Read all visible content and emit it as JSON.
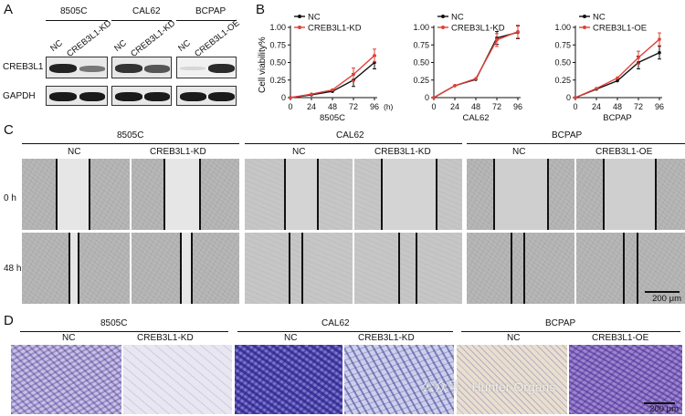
{
  "panels": {
    "a": "A",
    "b": "B",
    "c": "C",
    "d": "D"
  },
  "western": {
    "groups": [
      "8505C",
      "CAL62",
      "BCPAP"
    ],
    "lanes": [
      "NC",
      "CREB3L1-KD",
      "NC",
      "CREB3L1-KD",
      "NC",
      "CREB3L1-OE"
    ],
    "rows": [
      "CREB3L1",
      "GAPDH"
    ]
  },
  "viability": {
    "ylabel": "Cell viability%",
    "x_unit": "(h)",
    "legend_nc": "NC"
  },
  "chart_data": [
    {
      "type": "line",
      "title": "8505C",
      "x": [
        0,
        24,
        48,
        72,
        96
      ],
      "ylim": [
        0,
        1.0
      ],
      "yticks": [
        "0",
        "0.25",
        "0.50",
        "0.75",
        "1.00"
      ],
      "series": [
        {
          "name": "NC",
          "color": "#111111",
          "values": [
            0.0,
            0.04,
            0.09,
            0.25,
            0.5
          ]
        },
        {
          "name": "CREB3L1-KD",
          "color": "#e0413a",
          "values": [
            0.0,
            0.05,
            0.11,
            0.33,
            0.6
          ]
        }
      ]
    },
    {
      "type": "line",
      "title": "CAL62",
      "x": [
        0,
        24,
        48,
        72,
        96
      ],
      "ylim": [
        0,
        1.0
      ],
      "yticks": [
        "0",
        "0.25",
        "0.50",
        "0.75",
        "1.00"
      ],
      "series": [
        {
          "name": "NC",
          "color": "#111111",
          "values": [
            0.0,
            0.17,
            0.26,
            0.85,
            0.93
          ]
        },
        {
          "name": "CREB3L1-KD",
          "color": "#e0413a",
          "values": [
            0.0,
            0.17,
            0.27,
            0.82,
            0.94
          ]
        }
      ]
    },
    {
      "type": "line",
      "title": "BCPAP",
      "x": [
        0,
        24,
        48,
        72,
        96
      ],
      "ylim": [
        0,
        1.0
      ],
      "yticks": [
        "0",
        "0.25",
        "0.50",
        "0.75",
        "1.00"
      ],
      "series": [
        {
          "name": "NC",
          "color": "#111111",
          "values": [
            0.0,
            0.12,
            0.24,
            0.5,
            0.64
          ]
        },
        {
          "name": "CREB3L1-OE",
          "color": "#e0413a",
          "values": [
            0.0,
            0.13,
            0.28,
            0.57,
            0.83
          ]
        }
      ]
    }
  ],
  "wound": {
    "groups": [
      "8505C",
      "CAL62",
      "BCPAP"
    ],
    "conditions": [
      "NC",
      "CREB3L1-KD",
      "NC",
      "CREB3L1-KD",
      "NC",
      "CREB3L1-OE"
    ],
    "times": [
      "0 h",
      "48 h"
    ],
    "scale": "200 μm"
  },
  "transwell": {
    "groups": [
      "8505C",
      "CAL62",
      "BCPAP"
    ],
    "conditions": [
      "NC",
      "CREB3L1-KD",
      "NC",
      "CREB3L1-KD",
      "NC",
      "CREB3L1-OE"
    ],
    "scale": "200 μm",
    "watermark": "公众号 · Hunter Organs"
  }
}
